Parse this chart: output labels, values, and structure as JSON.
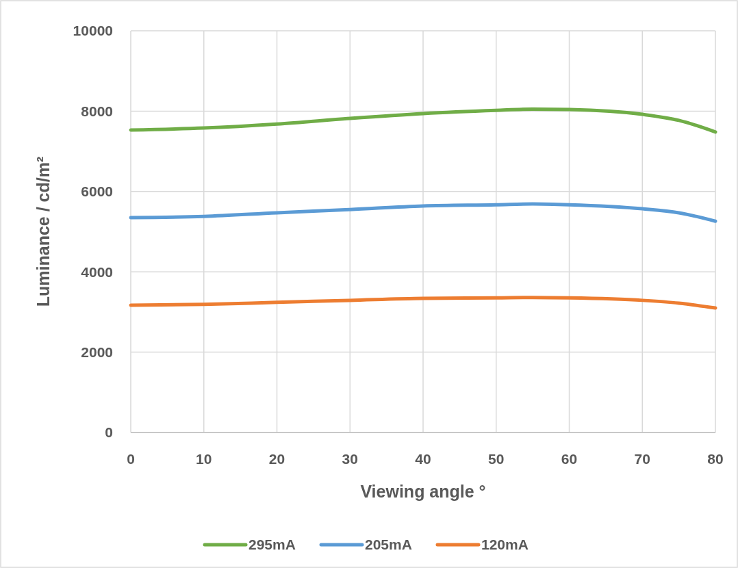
{
  "chart_data": {
    "type": "line",
    "xlabel": "Viewing angle °",
    "ylabel": "Luminance / cd/m²",
    "x": [
      0,
      10,
      20,
      30,
      40,
      50,
      55,
      60,
      70,
      75,
      80
    ],
    "xlim": [
      0,
      80
    ],
    "xticks": [
      0,
      10,
      20,
      30,
      40,
      50,
      60,
      70,
      80
    ],
    "ylim": [
      0,
      10000
    ],
    "yticks": [
      0,
      2000,
      4000,
      6000,
      8000,
      10000
    ],
    "grid": true,
    "legend": "bottom",
    "marker": "none",
    "line_style": "solid",
    "series": [
      {
        "name": "295mA",
        "color": "#70ad47",
        "values": [
          7530,
          7580,
          7680,
          7820,
          7940,
          8020,
          8050,
          8040,
          7920,
          7770,
          7480
        ]
      },
      {
        "name": "205mA",
        "color": "#5b9bd5",
        "values": [
          5350,
          5380,
          5470,
          5550,
          5640,
          5670,
          5690,
          5670,
          5570,
          5470,
          5260
        ]
      },
      {
        "name": "120mA",
        "color": "#ed7d31",
        "values": [
          3170,
          3190,
          3240,
          3290,
          3340,
          3350,
          3360,
          3350,
          3290,
          3220,
          3100
        ]
      }
    ]
  }
}
